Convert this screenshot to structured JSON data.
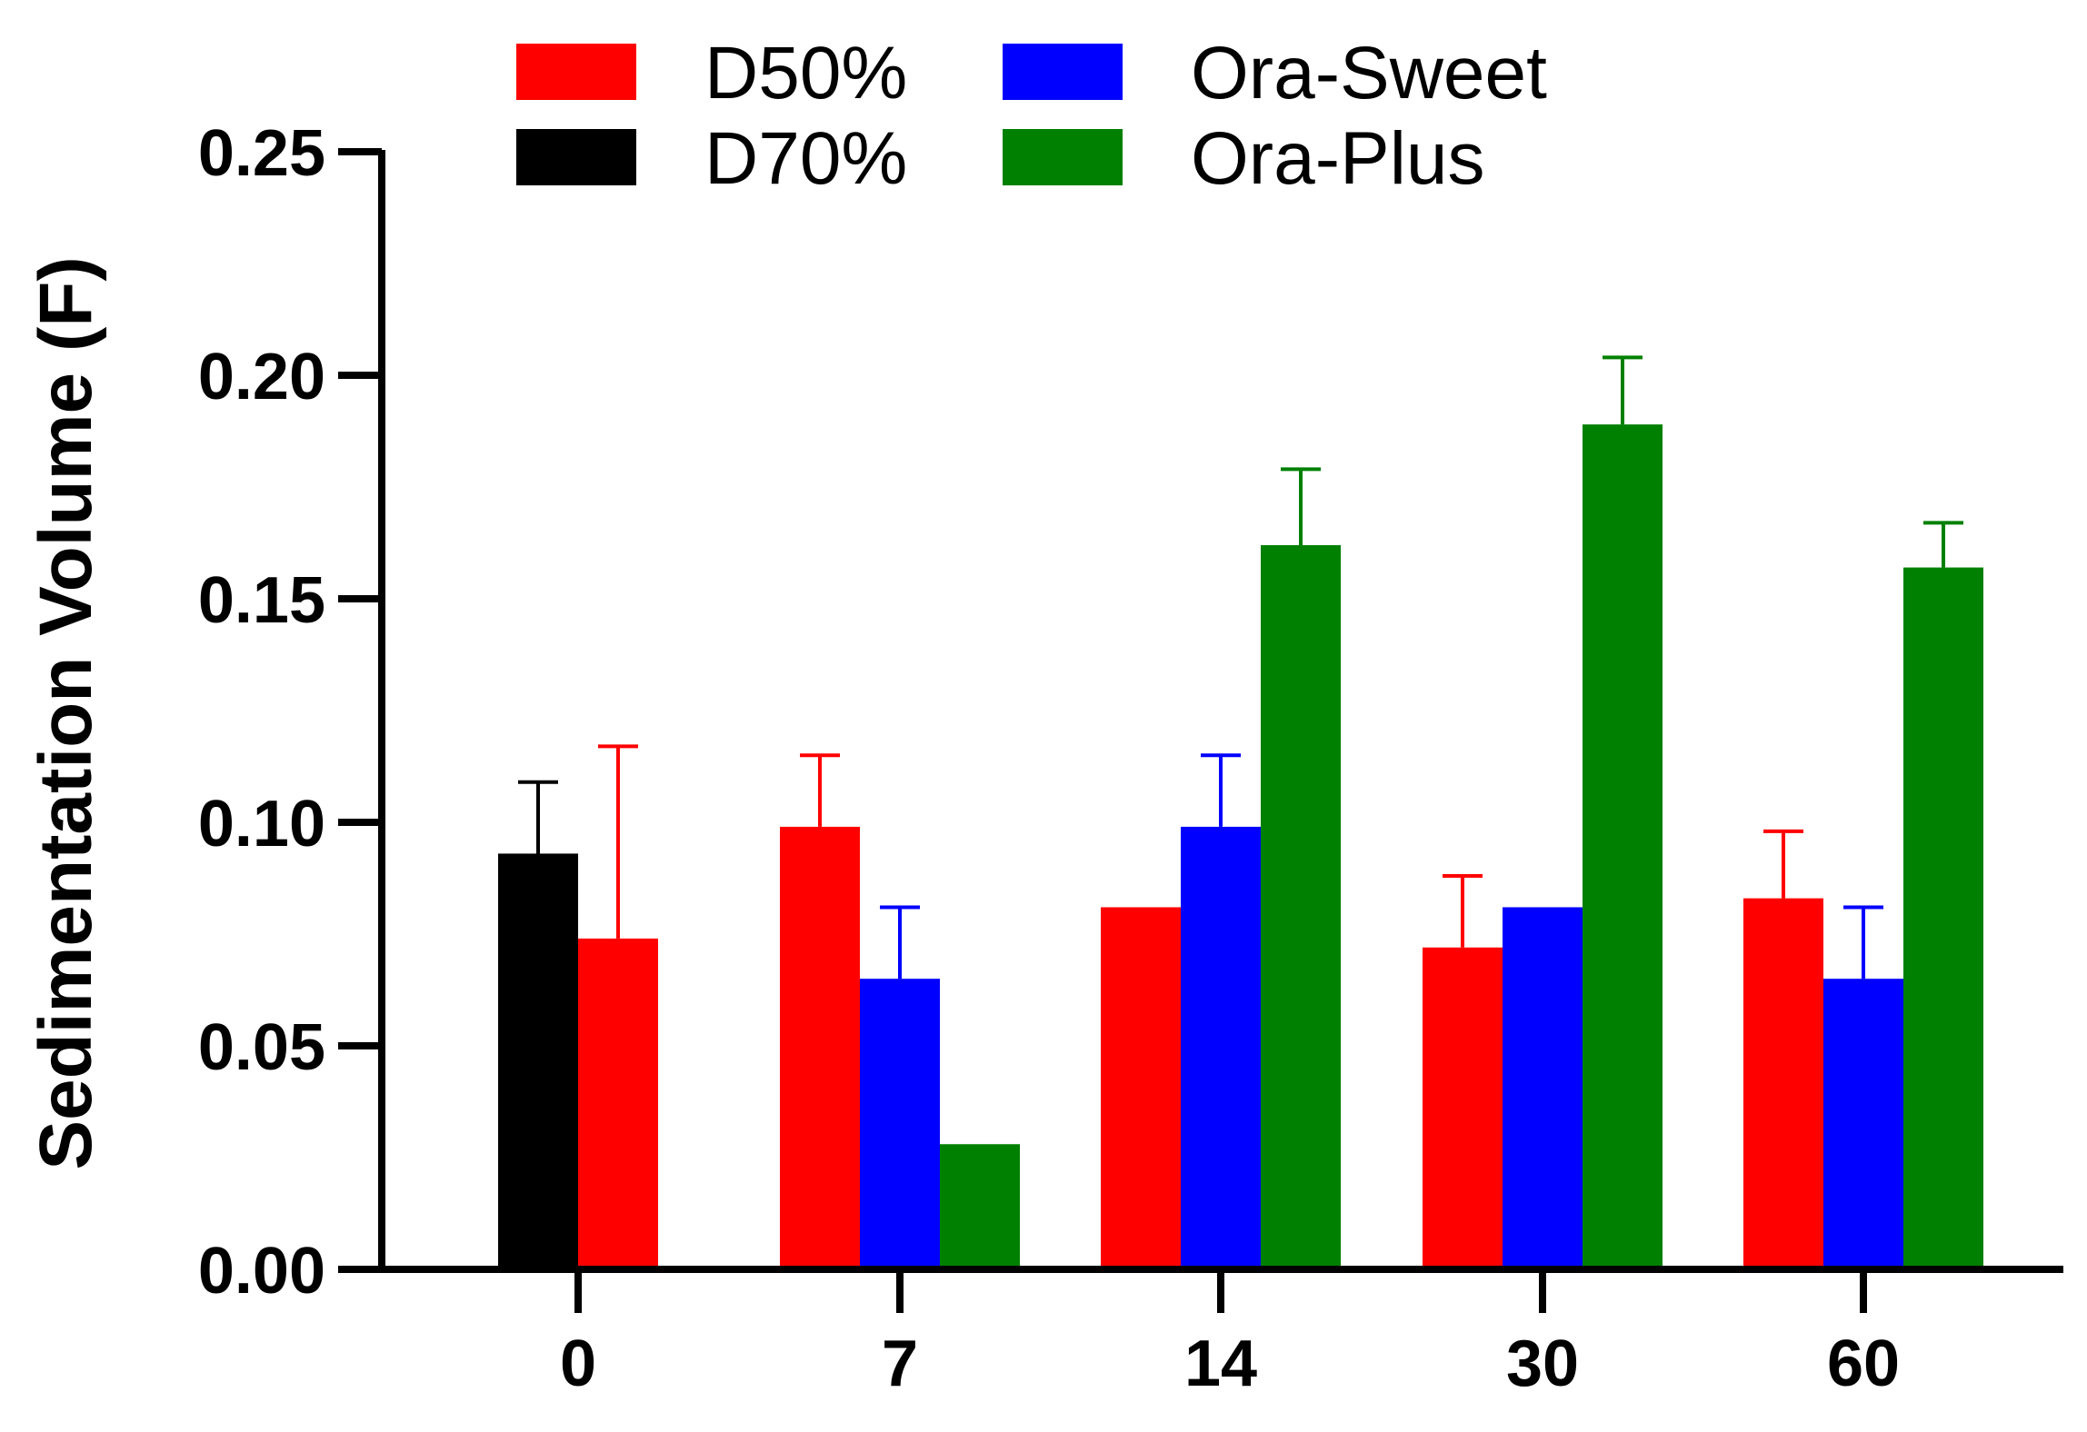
{
  "chart_data": {
    "type": "bar",
    "title": "",
    "xlabel": "",
    "ylabel": "Sedimentation Volume (F)",
    "ylim": [
      0,
      0.25
    ],
    "yticks": [
      "0.00",
      "0.05",
      "0.10",
      "0.15",
      "0.20",
      "0.25"
    ],
    "ytick_values": [
      0,
      0.05,
      0.1,
      0.15,
      0.2,
      0.25
    ],
    "categories": [
      "0",
      "7",
      "14",
      "30",
      "60"
    ],
    "series_order": [
      "D70%",
      "D50%",
      "Ora-Sweet",
      "Ora-Plus"
    ],
    "series": [
      {
        "name": "D50%",
        "color": "#ff0000",
        "values": [
          0.074,
          0.099,
          0.081,
          0.072,
          0.083
        ],
        "errors": [
          0.043,
          0.016,
          null,
          0.016,
          0.015
        ]
      },
      {
        "name": "D70%",
        "color": "#000000",
        "values": [
          0.093,
          null,
          null,
          null,
          null
        ],
        "errors": [
          0.016,
          null,
          null,
          null,
          null
        ]
      },
      {
        "name": "Ora-Sweet",
        "color": "#0000ff",
        "values": [
          null,
          0.065,
          0.099,
          0.081,
          0.065
        ],
        "errors": [
          null,
          0.016,
          0.016,
          null,
          0.016
        ]
      },
      {
        "name": "Ora-Plus",
        "color": "#008000",
        "values": [
          null,
          0.028,
          0.162,
          0.189,
          0.157
        ],
        "errors": [
          null,
          null,
          0.017,
          0.015,
          0.01
        ]
      }
    ],
    "legend": {
      "placement": "top",
      "entries": [
        {
          "name": "D50%",
          "color": "#ff0000"
        },
        {
          "name": "Ora-Sweet",
          "color": "#0000ff"
        },
        {
          "name": "D70%",
          "color": "#000000"
        },
        {
          "name": "Ora-Plus",
          "color": "#008000"
        }
      ]
    },
    "grid": false
  }
}
